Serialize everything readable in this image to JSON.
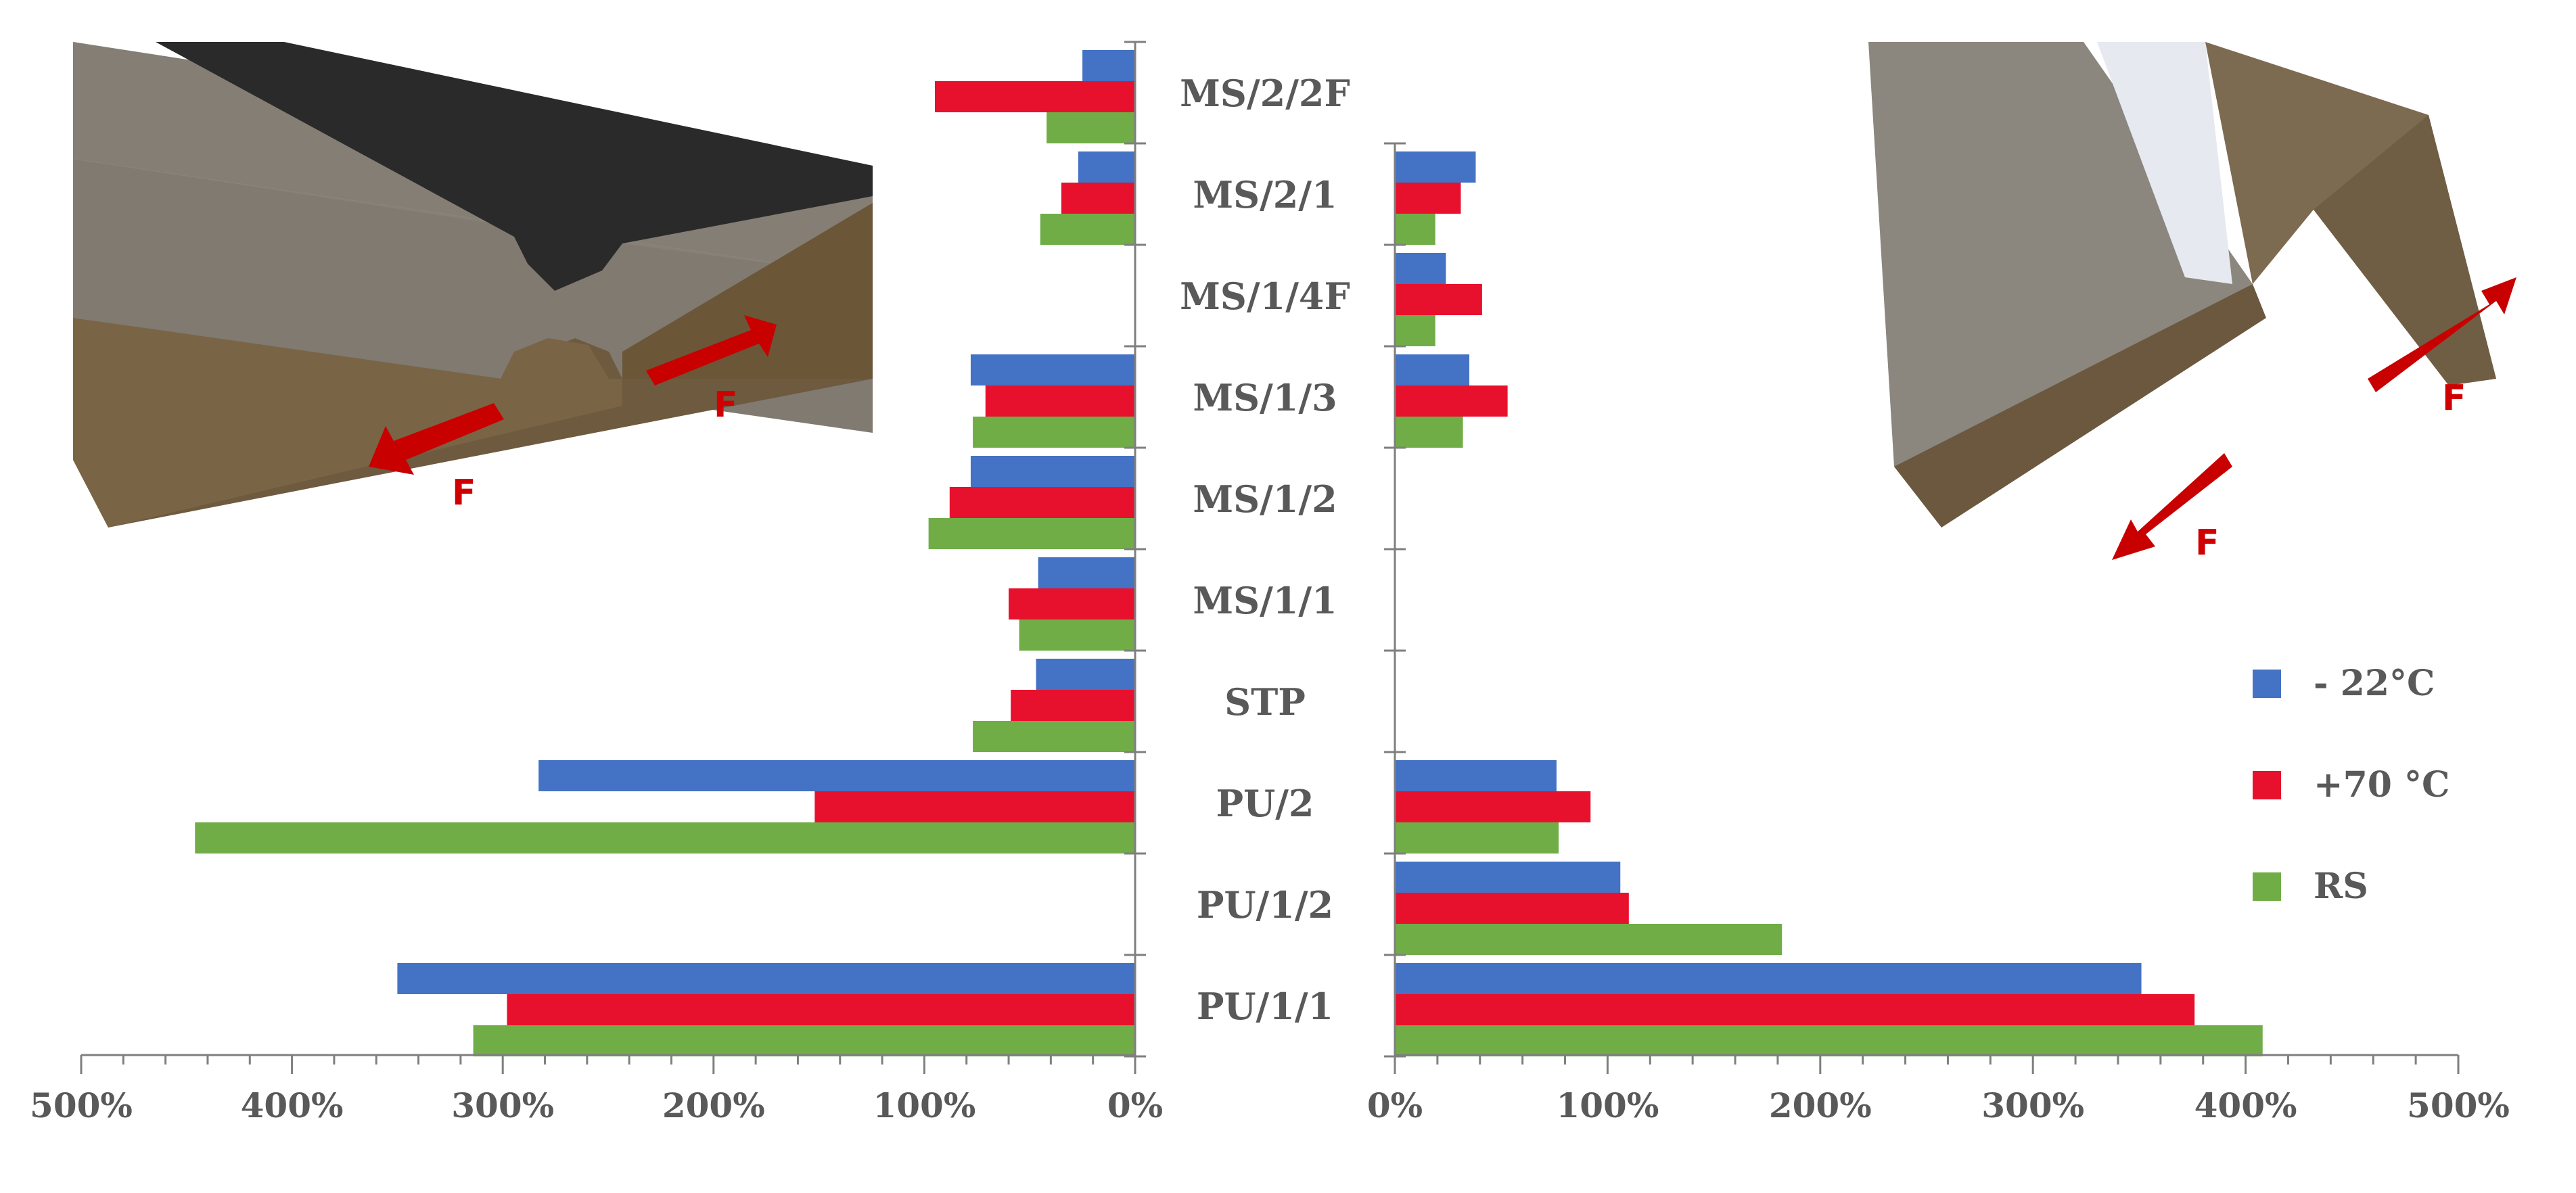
{
  "chart_data": {
    "type": "bar",
    "orientation": "horizontal",
    "categories": [
      "MS/2/2F",
      "MS/2/1",
      "MS/1/4F",
      "MS/1/3",
      "MS/1/2",
      "MS/1/1",
      "STP",
      "PU/2",
      "PU/1/2",
      "PU/1/1"
    ],
    "left_panel": {
      "xlim": [
        0,
        500
      ],
      "direction": "reversed",
      "tick_labels": [
        "500%",
        "400%",
        "300%",
        "200%",
        "100%",
        "0%"
      ],
      "series": [
        {
          "name": "- 22°C",
          "color": "#4472C4",
          "values": [
            25,
            27,
            null,
            78,
            78,
            46,
            47,
            283,
            null,
            350
          ]
        },
        {
          "name": "+70 °C",
          "color": "#E8112D",
          "values": [
            95,
            35,
            null,
            71,
            88,
            60,
            59,
            152,
            null,
            298
          ]
        },
        {
          "name": "RS",
          "color": "#70AD47",
          "values": [
            42,
            45,
            null,
            77,
            98,
            55,
            77,
            446,
            null,
            314
          ]
        }
      ]
    },
    "right_panel": {
      "xlim": [
        0,
        500
      ],
      "direction": "normal",
      "tick_labels": [
        "0%",
        "100%",
        "200%",
        "300%",
        "400%",
        "500%"
      ],
      "series": [
        {
          "name": "- 22°C",
          "color": "#4472C4",
          "values": [
            null,
            38,
            24,
            35,
            null,
            null,
            null,
            76,
            106,
            351
          ]
        },
        {
          "name": "+70 °C",
          "color": "#E8112D",
          "values": [
            null,
            31,
            41,
            53,
            null,
            null,
            null,
            92,
            110,
            376
          ]
        },
        {
          "name": "RS",
          "color": "#70AD47",
          "values": [
            null,
            19,
            19,
            32,
            null,
            null,
            null,
            77,
            182,
            408
          ]
        }
      ]
    },
    "legend": {
      "position": "right",
      "entries": [
        {
          "label": "- 22°C",
          "color": "#4472C4"
        },
        {
          "label": "+70 °C",
          "color": "#E8112D"
        },
        {
          "label": "RS",
          "color": "#70AD47"
        }
      ]
    },
    "annotations": {
      "force_label": "F"
    }
  }
}
